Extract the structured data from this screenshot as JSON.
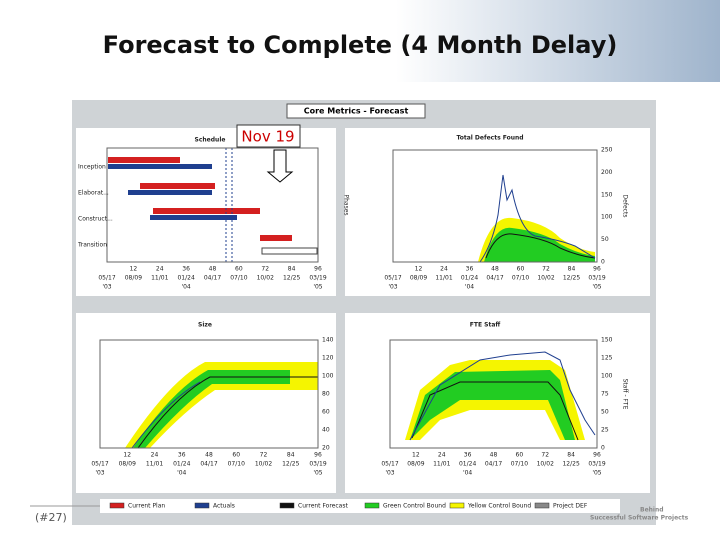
{
  "title": "Forecast to Complete (4 Month Delay)",
  "page_number": "(#27)",
  "panel_title": "Core Metrics - Forecast",
  "callout": "Nov 19",
  "x_months": [
    "12",
    "24",
    "36",
    "48",
    "60",
    "72",
    "84",
    "96"
  ],
  "x_dates": [
    {
      "date": "05/17",
      "year": "'03"
    },
    {
      "date": "08/09"
    },
    {
      "date": "11/01"
    },
    {
      "date": "01/24",
      "year": "'04"
    },
    {
      "date": "04/17"
    },
    {
      "date": "07/10"
    },
    {
      "date": "10/02"
    },
    {
      "date": "12/25"
    },
    {
      "date": "03/19",
      "year": "'05"
    }
  ],
  "charts": [
    {
      "title": "Schedule",
      "y_label": "Phases",
      "phases": [
        "Inception",
        "Elaborat...",
        "Construct...",
        "Transition"
      ]
    },
    {
      "title": "Total Defects Found",
      "y_label": "Defects",
      "yticks": [
        "0",
        "50",
        "100",
        "150",
        "200",
        "250"
      ]
    },
    {
      "title": "Size",
      "yticks": [
        "20",
        "40",
        "60",
        "80",
        "100",
        "120",
        "140"
      ]
    },
    {
      "title": "FTE Staff",
      "y_label": "Staff - FTE",
      "yticks": [
        "0",
        "25",
        "50",
        "75",
        "100",
        "125",
        "150"
      ]
    }
  ],
  "legend": [
    "Current Plan",
    "Actuals",
    "Current Forecast",
    "Green Control Bound",
    "Yellow Control Bound",
    "Project DEF"
  ],
  "footer": [
    "Behind",
    "Successful Software Projects"
  ]
}
